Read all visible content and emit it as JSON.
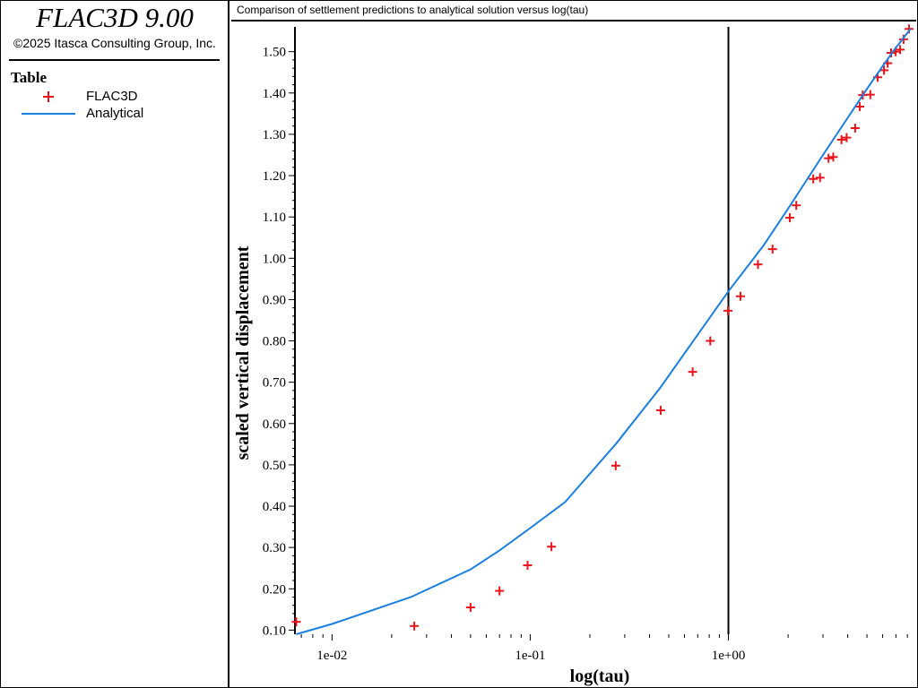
{
  "app": {
    "title": "FLAC3D 9.00",
    "copyright": "©2025 Itasca Consulting Group, Inc."
  },
  "legend": {
    "heading": "Table",
    "items": [
      {
        "label": "FLAC3D",
        "marker": "plus",
        "color": "#e8151b"
      },
      {
        "label": "Analytical",
        "marker": "line",
        "color": "#1a7fe0"
      }
    ]
  },
  "chart_data": {
    "type": "scatter",
    "title": "Comparison of settlement predictions to analytical solution versus log(tau)",
    "xlabel": "log(tau)",
    "ylabel": "scaled vertical displacement",
    "xscale": "log",
    "xlim": [
      0.0065,
      8.5
    ],
    "ylim": [
      0.09,
      1.56
    ],
    "x_ticks": [
      0.01,
      0.1,
      1
    ],
    "x_tick_labels": [
      "1e-02",
      "1e-01",
      "1e+00"
    ],
    "y_ticks": [
      0.1,
      0.2,
      0.3,
      0.4,
      0.5,
      0.6,
      0.7,
      0.8,
      0.9,
      1.0,
      1.1,
      1.2,
      1.3,
      1.4,
      1.5
    ],
    "y_tick_labels": [
      "0.10",
      "0.20",
      "0.30",
      "0.40",
      "0.50",
      "0.60",
      "0.70",
      "0.80",
      "0.90",
      "1.00",
      "1.10",
      "1.20",
      "1.30",
      "1.40",
      "1.50"
    ],
    "reference_line_x": 1,
    "grid": false,
    "series": [
      {
        "name": "FLAC3D",
        "marker": "plus",
        "color": "#e8151b",
        "x": [
          0.0066,
          0.026,
          0.05,
          0.07,
          0.097,
          0.128,
          0.27,
          0.455,
          0.66,
          0.81,
          0.995,
          1.15,
          1.41,
          1.67,
          2.04,
          2.2,
          2.68,
          2.9,
          3.2,
          3.38,
          3.72,
          3.95,
          4.36,
          4.6,
          4.76,
          5.2,
          5.66,
          6.1,
          6.36,
          6.62,
          6.98,
          7.35,
          7.65,
          8.15
        ],
        "y": [
          0.12,
          0.11,
          0.155,
          0.195,
          0.257,
          0.302,
          0.498,
          0.632,
          0.725,
          0.8,
          0.873,
          0.908,
          0.985,
          1.022,
          1.098,
          1.128,
          1.192,
          1.195,
          1.242,
          1.245,
          1.287,
          1.292,
          1.315,
          1.367,
          1.395,
          1.396,
          1.438,
          1.455,
          1.472,
          1.497,
          1.5,
          1.505,
          1.53,
          1.555
        ]
      },
      {
        "name": "Analytical",
        "marker": "line",
        "color": "#1a7fe0",
        "x": [
          0.0066,
          0.01,
          0.025,
          0.05,
          0.07,
          0.1,
          0.15,
          0.27,
          0.45,
          0.7,
          1.0,
          1.5,
          2.0,
          3.0,
          4.0,
          5.0,
          6.0,
          7.0,
          8.3
        ],
        "y": [
          0.09,
          0.115,
          0.18,
          0.247,
          0.293,
          0.347,
          0.41,
          0.55,
          0.685,
          0.815,
          0.92,
          1.03,
          1.12,
          1.25,
          1.34,
          1.41,
          1.465,
          1.51,
          1.555
        ]
      }
    ]
  }
}
